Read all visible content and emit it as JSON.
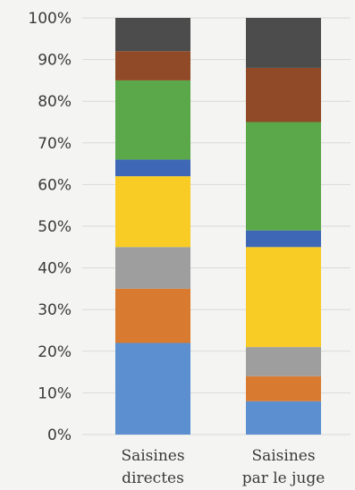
{
  "chart_data": {
    "type": "bar",
    "stacked": true,
    "categories": [
      "Saisines directes",
      "Saisines par le juge"
    ],
    "category_lines": [
      [
        "Saisines",
        "directes"
      ],
      [
        "Saisines",
        "par le juge"
      ]
    ],
    "ylim": [
      0,
      100
    ],
    "yticks": [
      "0%",
      "10%",
      "20%",
      "30%",
      "40%",
      "50%",
      "60%",
      "70%",
      "80%",
      "90%",
      "100%"
    ],
    "grid": true,
    "series": [
      {
        "color": "#5b8fcf",
        "values": [
          22,
          8
        ]
      },
      {
        "color": "#d87a2f",
        "values": [
          13,
          6
        ]
      },
      {
        "color": "#9e9e9e",
        "values": [
          10,
          7
        ]
      },
      {
        "color": "#f8cc25",
        "values": [
          17,
          24
        ]
      },
      {
        "color": "#3e68b6",
        "values": [
          4,
          4
        ]
      },
      {
        "color": "#5ba84a",
        "values": [
          19,
          26
        ]
      },
      {
        "color": "#904a27",
        "values": [
          7,
          13
        ]
      },
      {
        "color": "#4c4c4c",
        "values": [
          8,
          12
        ]
      }
    ]
  }
}
